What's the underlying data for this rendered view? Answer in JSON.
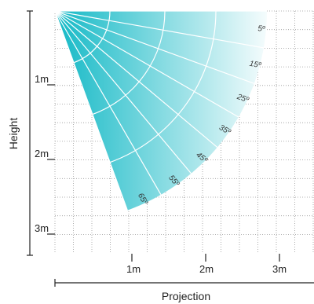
{
  "diagram": {
    "axes": {
      "x_title": "Projection",
      "y_title": "Height",
      "x_ticks": [
        "1m",
        "2m",
        "3m"
      ],
      "y_ticks": [
        "1m",
        "2m",
        "3m"
      ]
    },
    "fan": {
      "start_angle_deg": 0,
      "end_angle_deg": 70,
      "ray_angles_deg": [
        0,
        10,
        20,
        30,
        40,
        50,
        60,
        70
      ],
      "arc_labels": [
        "5º",
        "15º",
        "25º",
        "35º",
        "45º",
        "55º",
        "65º"
      ],
      "colors": {
        "near": "#14b9c6",
        "far": "#ffffff",
        "grid": "#ffffff",
        "background_grid": "#999999"
      }
    }
  }
}
